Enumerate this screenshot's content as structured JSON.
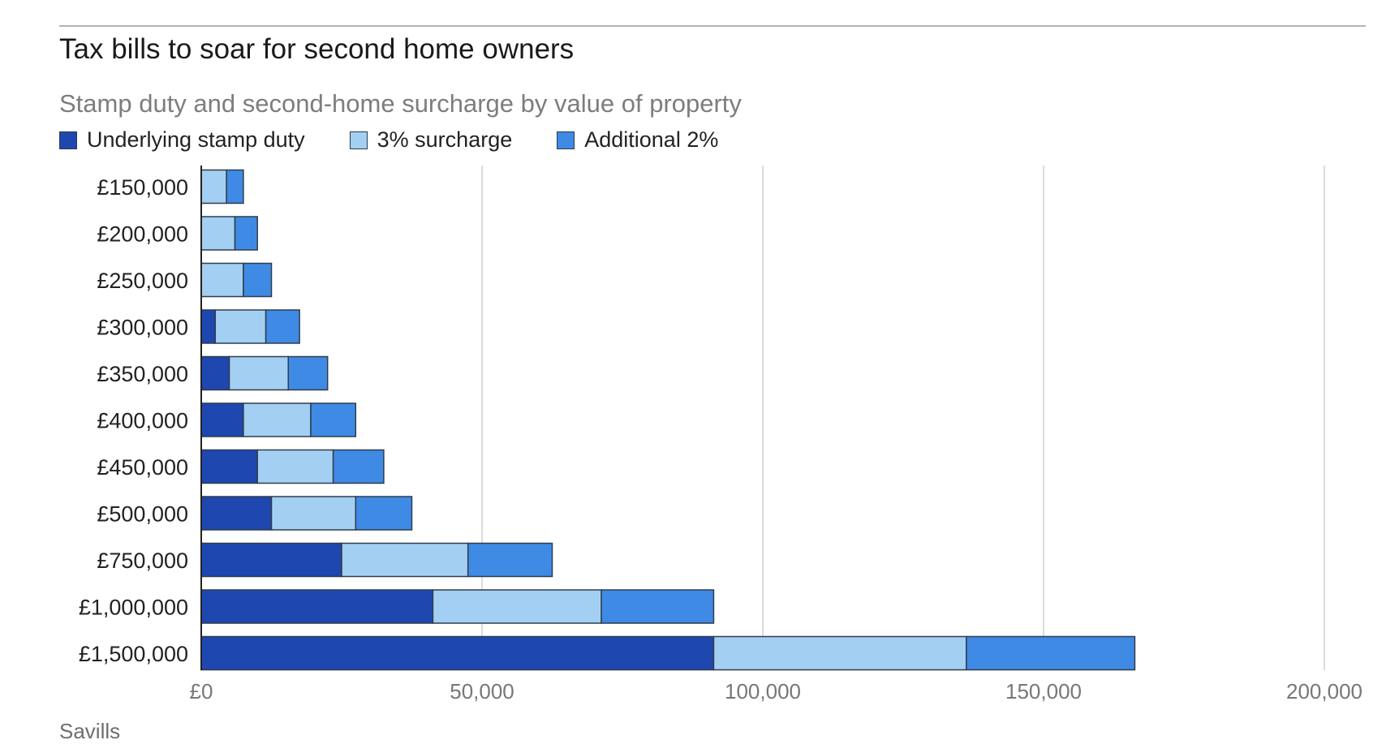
{
  "title": "Tax bills to soar for second home owners",
  "subtitle": "Stamp duty and second-home surcharge by value of property",
  "source": "Savills",
  "colors": {
    "underlying": "#1f47b0",
    "surcharge3": "#a3cff3",
    "additional2": "#3f8ae4",
    "grid": "#dcdcdc",
    "axis": "#222222"
  },
  "legend": [
    {
      "label": "Underlying stamp duty",
      "color": "#1f47b0"
    },
    {
      "label": "3% surcharge",
      "color": "#a3cff3"
    },
    {
      "label": "Additional 2%",
      "color": "#3f8ae4"
    }
  ],
  "chart_data": {
    "type": "bar",
    "orientation": "horizontal",
    "stacked": true,
    "categories": [
      "£150,000",
      "£200,000",
      "£250,000",
      "£300,000",
      "£350,000",
      "£400,000",
      "£450,000",
      "£500,000",
      "£750,000",
      "£1,000,000",
      "£1,500,000"
    ],
    "series": [
      {
        "name": "Underlying stamp duty",
        "values": [
          0,
          0,
          0,
          2500,
          5000,
          7500,
          10000,
          12500,
          25000,
          41250,
          91250
        ]
      },
      {
        "name": "3% surcharge",
        "values": [
          4500,
          6000,
          7500,
          9000,
          10500,
          12000,
          13500,
          15000,
          22500,
          30000,
          45000
        ]
      },
      {
        "name": "Additional 2%",
        "values": [
          3000,
          4000,
          5000,
          6000,
          7000,
          8000,
          9000,
          10000,
          15000,
          20000,
          30000
        ]
      }
    ],
    "x_ticks": [
      {
        "value": 0,
        "label": "£0"
      },
      {
        "value": 50000,
        "label": "50,000"
      },
      {
        "value": 100000,
        "label": "100,000"
      },
      {
        "value": 150000,
        "label": "150,000"
      },
      {
        "value": 200000,
        "label": "200,000"
      }
    ],
    "xlim": [
      0,
      200000
    ],
    "grid": "vertical",
    "legend_position": "top-left"
  }
}
